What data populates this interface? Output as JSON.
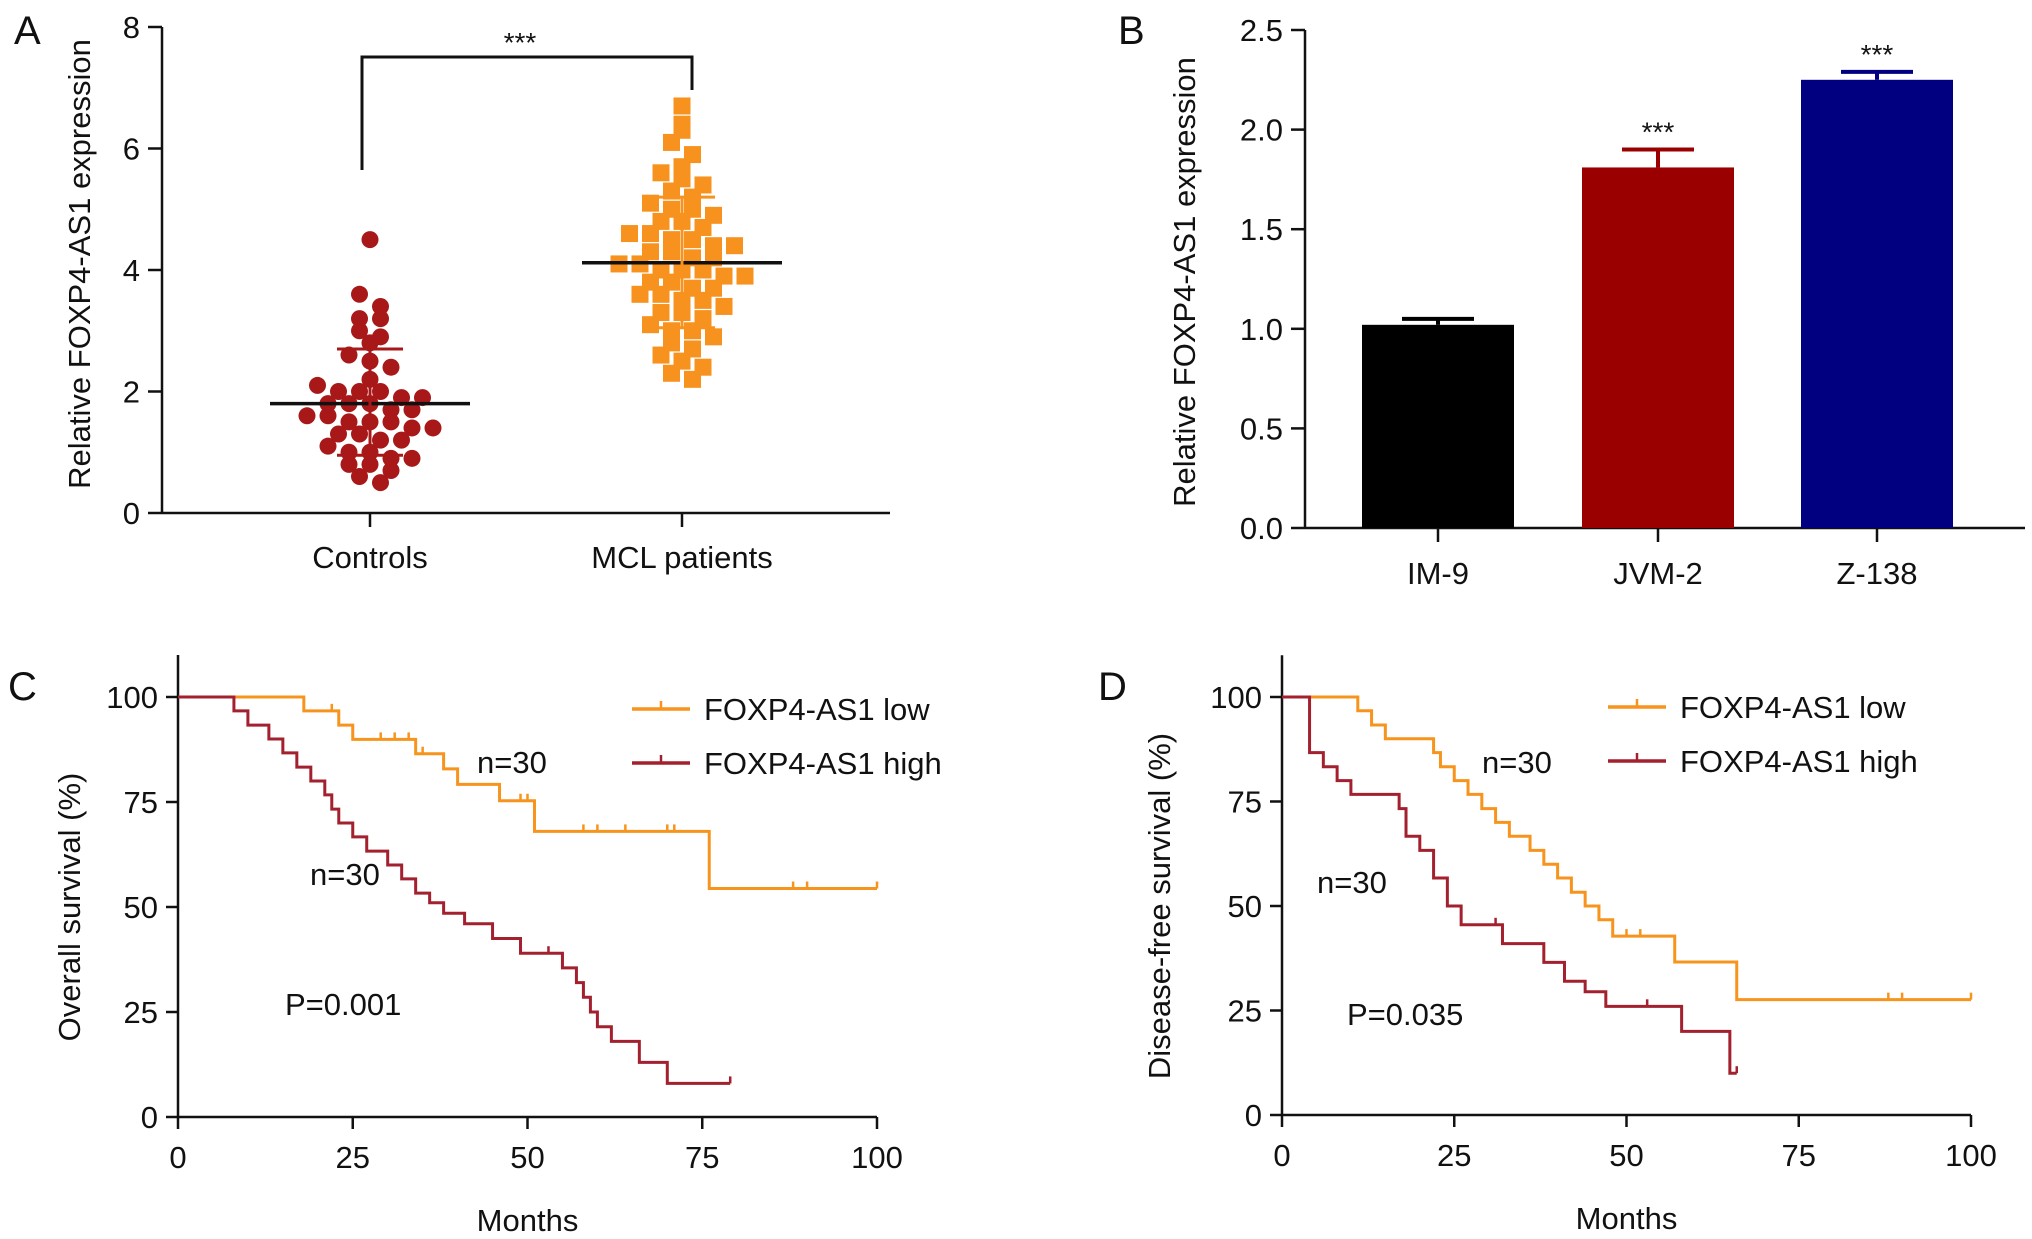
{
  "chart_data": [
    {
      "panel": "A",
      "type": "scatter",
      "ylabel": "Relative FOXP4-AS1 expression",
      "ylim": [
        0,
        8
      ],
      "yticks": [
        "0",
        "2",
        "4",
        "6",
        "8"
      ],
      "categories": [
        "Controls",
        "MCL patients"
      ],
      "significance": "***",
      "groups": [
        {
          "name": "Controls",
          "color": "#a81818",
          "marker": "circle",
          "mean": 1.8,
          "sd_low": 0.95,
          "sd_high": 2.7,
          "values": [
            4.5,
            3.6,
            3.4,
            3.2,
            3.2,
            3.0,
            2.9,
            2.8,
            2.6,
            2.5,
            2.4,
            2.2,
            2.1,
            2.0,
            2.0,
            2.0,
            1.9,
            1.9,
            1.8,
            1.8,
            1.8,
            1.7,
            1.7,
            1.6,
            1.6,
            1.5,
            1.5,
            1.5,
            1.4,
            1.4,
            1.3,
            1.3,
            1.2,
            1.2,
            1.1,
            1.0,
            1.0,
            0.9,
            0.9,
            0.8,
            0.8,
            0.7,
            0.6,
            0.5
          ]
        },
        {
          "name": "MCL patients",
          "color": "#f7921e",
          "marker": "square",
          "mean": 4.12,
          "sd_low": 3.05,
          "sd_high": 5.2,
          "values": [
            6.7,
            6.4,
            6.3,
            6.1,
            5.9,
            5.7,
            5.6,
            5.5,
            5.4,
            5.3,
            5.2,
            5.1,
            5.0,
            5.0,
            4.9,
            4.8,
            4.8,
            4.7,
            4.6,
            4.6,
            4.5,
            4.5,
            4.4,
            4.4,
            4.3,
            4.3,
            4.2,
            4.2,
            4.1,
            4.1,
            4.0,
            4.0,
            4.0,
            3.9,
            3.9,
            3.8,
            3.8,
            3.7,
            3.7,
            3.6,
            3.6,
            3.5,
            3.5,
            3.4,
            3.3,
            3.3,
            3.2,
            3.1,
            3.0,
            3.0,
            2.9,
            2.8,
            2.7,
            2.6,
            2.5,
            2.4,
            2.3,
            2.2
          ]
        }
      ]
    },
    {
      "panel": "B",
      "type": "bar",
      "ylabel": "Relative FOXP4-AS1 expression",
      "ylim": [
        0,
        2.5
      ],
      "yticks": [
        "0.0",
        "0.5",
        "1.0",
        "1.5",
        "2.0",
        "2.5"
      ],
      "categories": [
        "IM-9",
        "JVM-2",
        "Z-138"
      ],
      "values": [
        1.02,
        1.81,
        2.25
      ],
      "errors": [
        0.03,
        0.09,
        0.04
      ],
      "colors": [
        "#000000",
        "#9b0000",
        "#000080"
      ],
      "annotations": [
        "",
        "***",
        "***"
      ]
    },
    {
      "panel": "C",
      "type": "line",
      "xlabel": "Months",
      "ylabel": "Overall survival (%)",
      "xlim": [
        0,
        100
      ],
      "ylim": [
        0,
        100
      ],
      "xticks": [
        "0",
        "25",
        "50",
        "75",
        "100"
      ],
      "yticks": [
        "0",
        "25",
        "50",
        "75",
        "100"
      ],
      "p_value": "P=0.001",
      "n_low": "n=30",
      "n_high": "n=30",
      "series": [
        {
          "name": "FOXP4-AS1 low",
          "color": "#f7941d",
          "x": [
            0,
            18,
            23,
            25,
            34,
            38,
            40,
            46,
            51,
            76,
            100
          ],
          "y": [
            100,
            96.7,
            93.3,
            89.9,
            86.5,
            82.9,
            79.2,
            75.3,
            68,
            54.4,
            54.4
          ],
          "censor_x": [
            22,
            29,
            31,
            33,
            35,
            49,
            50,
            58,
            60,
            64,
            70,
            71,
            88,
            90,
            100
          ]
        },
        {
          "name": "FOXP4-AS1 high",
          "color": "#a3202e",
          "x": [
            0,
            8,
            10,
            13,
            15,
            17,
            19,
            21,
            22,
            23,
            25,
            27,
            30,
            32,
            34,
            36,
            38,
            41,
            45,
            49,
            55,
            57,
            58,
            59,
            60,
            62,
            66,
            70,
            79
          ],
          "y": [
            100,
            96.7,
            93.3,
            90,
            86.7,
            83.3,
            80,
            76.7,
            73.3,
            70,
            66.7,
            63.3,
            60,
            56.7,
            53.3,
            51,
            48.5,
            46,
            42.5,
            39,
            35.5,
            32,
            28.5,
            25,
            21.5,
            18,
            13,
            8,
            8
          ],
          "censor_x": [
            53,
            79
          ]
        }
      ]
    },
    {
      "panel": "D",
      "type": "line",
      "xlabel": "Months",
      "ylabel": "Disease-free survival (%)",
      "xlim": [
        0,
        100
      ],
      "ylim": [
        0,
        100
      ],
      "xticks": [
        "0",
        "25",
        "50",
        "75",
        "100"
      ],
      "yticks": [
        "0",
        "25",
        "50",
        "75",
        "100"
      ],
      "p_value": "P=0.035",
      "n_low": "n=30",
      "n_high": "n=30",
      "series": [
        {
          "name": "FOXP4-AS1 low",
          "color": "#f7941d",
          "x": [
            0,
            11,
            13,
            15,
            22,
            23,
            25,
            27,
            29,
            31,
            33,
            36,
            38,
            40,
            42,
            44,
            46,
            48,
            57,
            66,
            100
          ],
          "y": [
            100,
            96.7,
            93.3,
            90,
            86.7,
            83.3,
            80,
            76.7,
            73.3,
            70,
            66.7,
            63.3,
            60,
            56.7,
            53.3,
            50,
            46.7,
            42.8,
            36.6,
            27.6,
            27.6
          ],
          "censor_x": [
            50,
            52,
            88,
            90,
            100
          ]
        },
        {
          "name": "FOXP4-AS1 high",
          "color": "#a3202e",
          "x": [
            0,
            4,
            6,
            8,
            10,
            12,
            17,
            18,
            20,
            22,
            24,
            26,
            32,
            38,
            41,
            44,
            47,
            58,
            65,
            66
          ],
          "y": [
            100,
            86.7,
            83.3,
            80,
            76.7,
            76.7,
            73.3,
            66.7,
            63.3,
            56.7,
            50,
            45.5,
            41,
            36.5,
            32,
            29.5,
            26,
            20,
            10,
            10
          ],
          "censor_x": [
            31,
            53,
            66
          ]
        }
      ]
    }
  ]
}
